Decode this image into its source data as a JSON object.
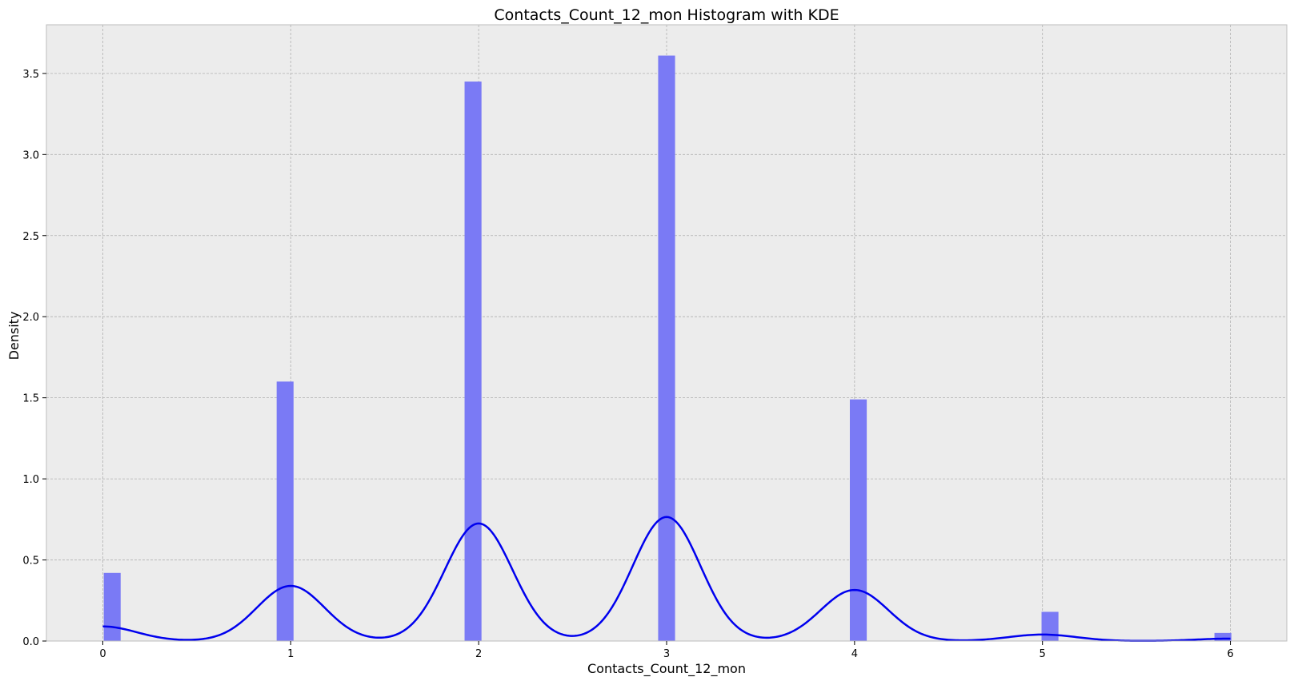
{
  "chart_data": {
    "type": "bar",
    "title": "Contacts_Count_12_mon Histogram with KDE",
    "xlabel": "Contacts_Count_12_mon",
    "ylabel": "Density",
    "xlim": [
      -0.3,
      6.3
    ],
    "ylim": [
      0,
      3.8
    ],
    "xticks": [
      0,
      1,
      2,
      3,
      4,
      5,
      6
    ],
    "xtick_labels": [
      "0",
      "1",
      "2",
      "3",
      "4",
      "5",
      "6"
    ],
    "yticks": [
      0.0,
      0.5,
      1.0,
      1.5,
      2.0,
      2.5,
      3.0,
      3.5
    ],
    "ytick_labels": [
      "0.0",
      "0.5",
      "1.0",
      "1.5",
      "2.0",
      "2.5",
      "3.0",
      "3.5"
    ],
    "grid": true,
    "colors": {
      "bar": "#7a7af5",
      "kde": "#0000ee",
      "axes_background": "#ececec",
      "grid": "#b0b0b0"
    },
    "bin_width": 0.09,
    "histogram": {
      "x": [
        0.05,
        0.97,
        1.97,
        3.0,
        4.02,
        5.04,
        5.96
      ],
      "values": [
        0.42,
        1.6,
        3.45,
        3.61,
        1.49,
        0.18,
        0.05
      ]
    },
    "kde": {
      "x": [
        0,
        1,
        2,
        3,
        4,
        5,
        6
      ],
      "peaks": [
        0.09,
        0.34,
        0.725,
        0.765,
        0.315,
        0.04,
        0.015
      ],
      "bandwidth": 0.18
    }
  }
}
